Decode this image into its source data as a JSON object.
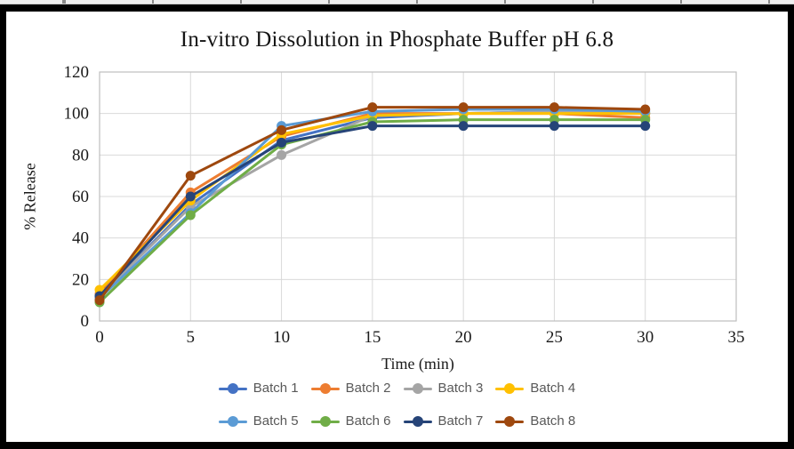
{
  "chart_data": {
    "type": "line",
    "title": "In-vitro Dissolution in Phosphate Buffer pH 6.8",
    "xlabel": "Time (min)",
    "ylabel": "% Release",
    "x": [
      0,
      5,
      10,
      15,
      20,
      25,
      30
    ],
    "x_ticks": [
      0,
      5,
      10,
      15,
      20,
      25,
      30,
      35
    ],
    "y_ticks": [
      0,
      20,
      40,
      60,
      80,
      100,
      120
    ],
    "xlim": [
      0,
      35
    ],
    "ylim": [
      0,
      120
    ],
    "grid": true,
    "legend_position": "bottom",
    "marker": "circle",
    "series": [
      {
        "name": "Batch 1",
        "color": "#4472C4",
        "values": [
          12,
          56,
          87,
          98,
          100,
          101,
          100
        ]
      },
      {
        "name": "Batch 2",
        "color": "#ED7D31",
        "values": [
          13,
          62,
          89,
          100,
          100,
          100,
          98
        ]
      },
      {
        "name": "Batch 3",
        "color": "#A5A5A5",
        "values": [
          12,
          55,
          80,
          99,
          100,
          101,
          100
        ]
      },
      {
        "name": "Batch 4",
        "color": "#FFC000",
        "values": [
          15,
          58,
          90,
          99,
          100,
          100,
          100
        ]
      },
      {
        "name": "Batch 5",
        "color": "#5B9BD5",
        "values": [
          11,
          52,
          94,
          101,
          102,
          102,
          101
        ]
      },
      {
        "name": "Batch 6",
        "color": "#70AD47",
        "values": [
          9,
          51,
          85,
          96,
          97,
          97,
          97
        ]
      },
      {
        "name": "Batch 7",
        "color": "#264478",
        "values": [
          12,
          60,
          86,
          94,
          94,
          94,
          94
        ]
      },
      {
        "name": "Batch 8",
        "color": "#9E480E",
        "values": [
          10,
          70,
          92,
          103,
          103,
          103,
          102
        ]
      }
    ],
    "colors": {
      "gridline": "#D9D9D9",
      "plot_border": "#BFBFBF",
      "tick_label": "#1a1a1a",
      "legend_text": "#595959"
    }
  }
}
